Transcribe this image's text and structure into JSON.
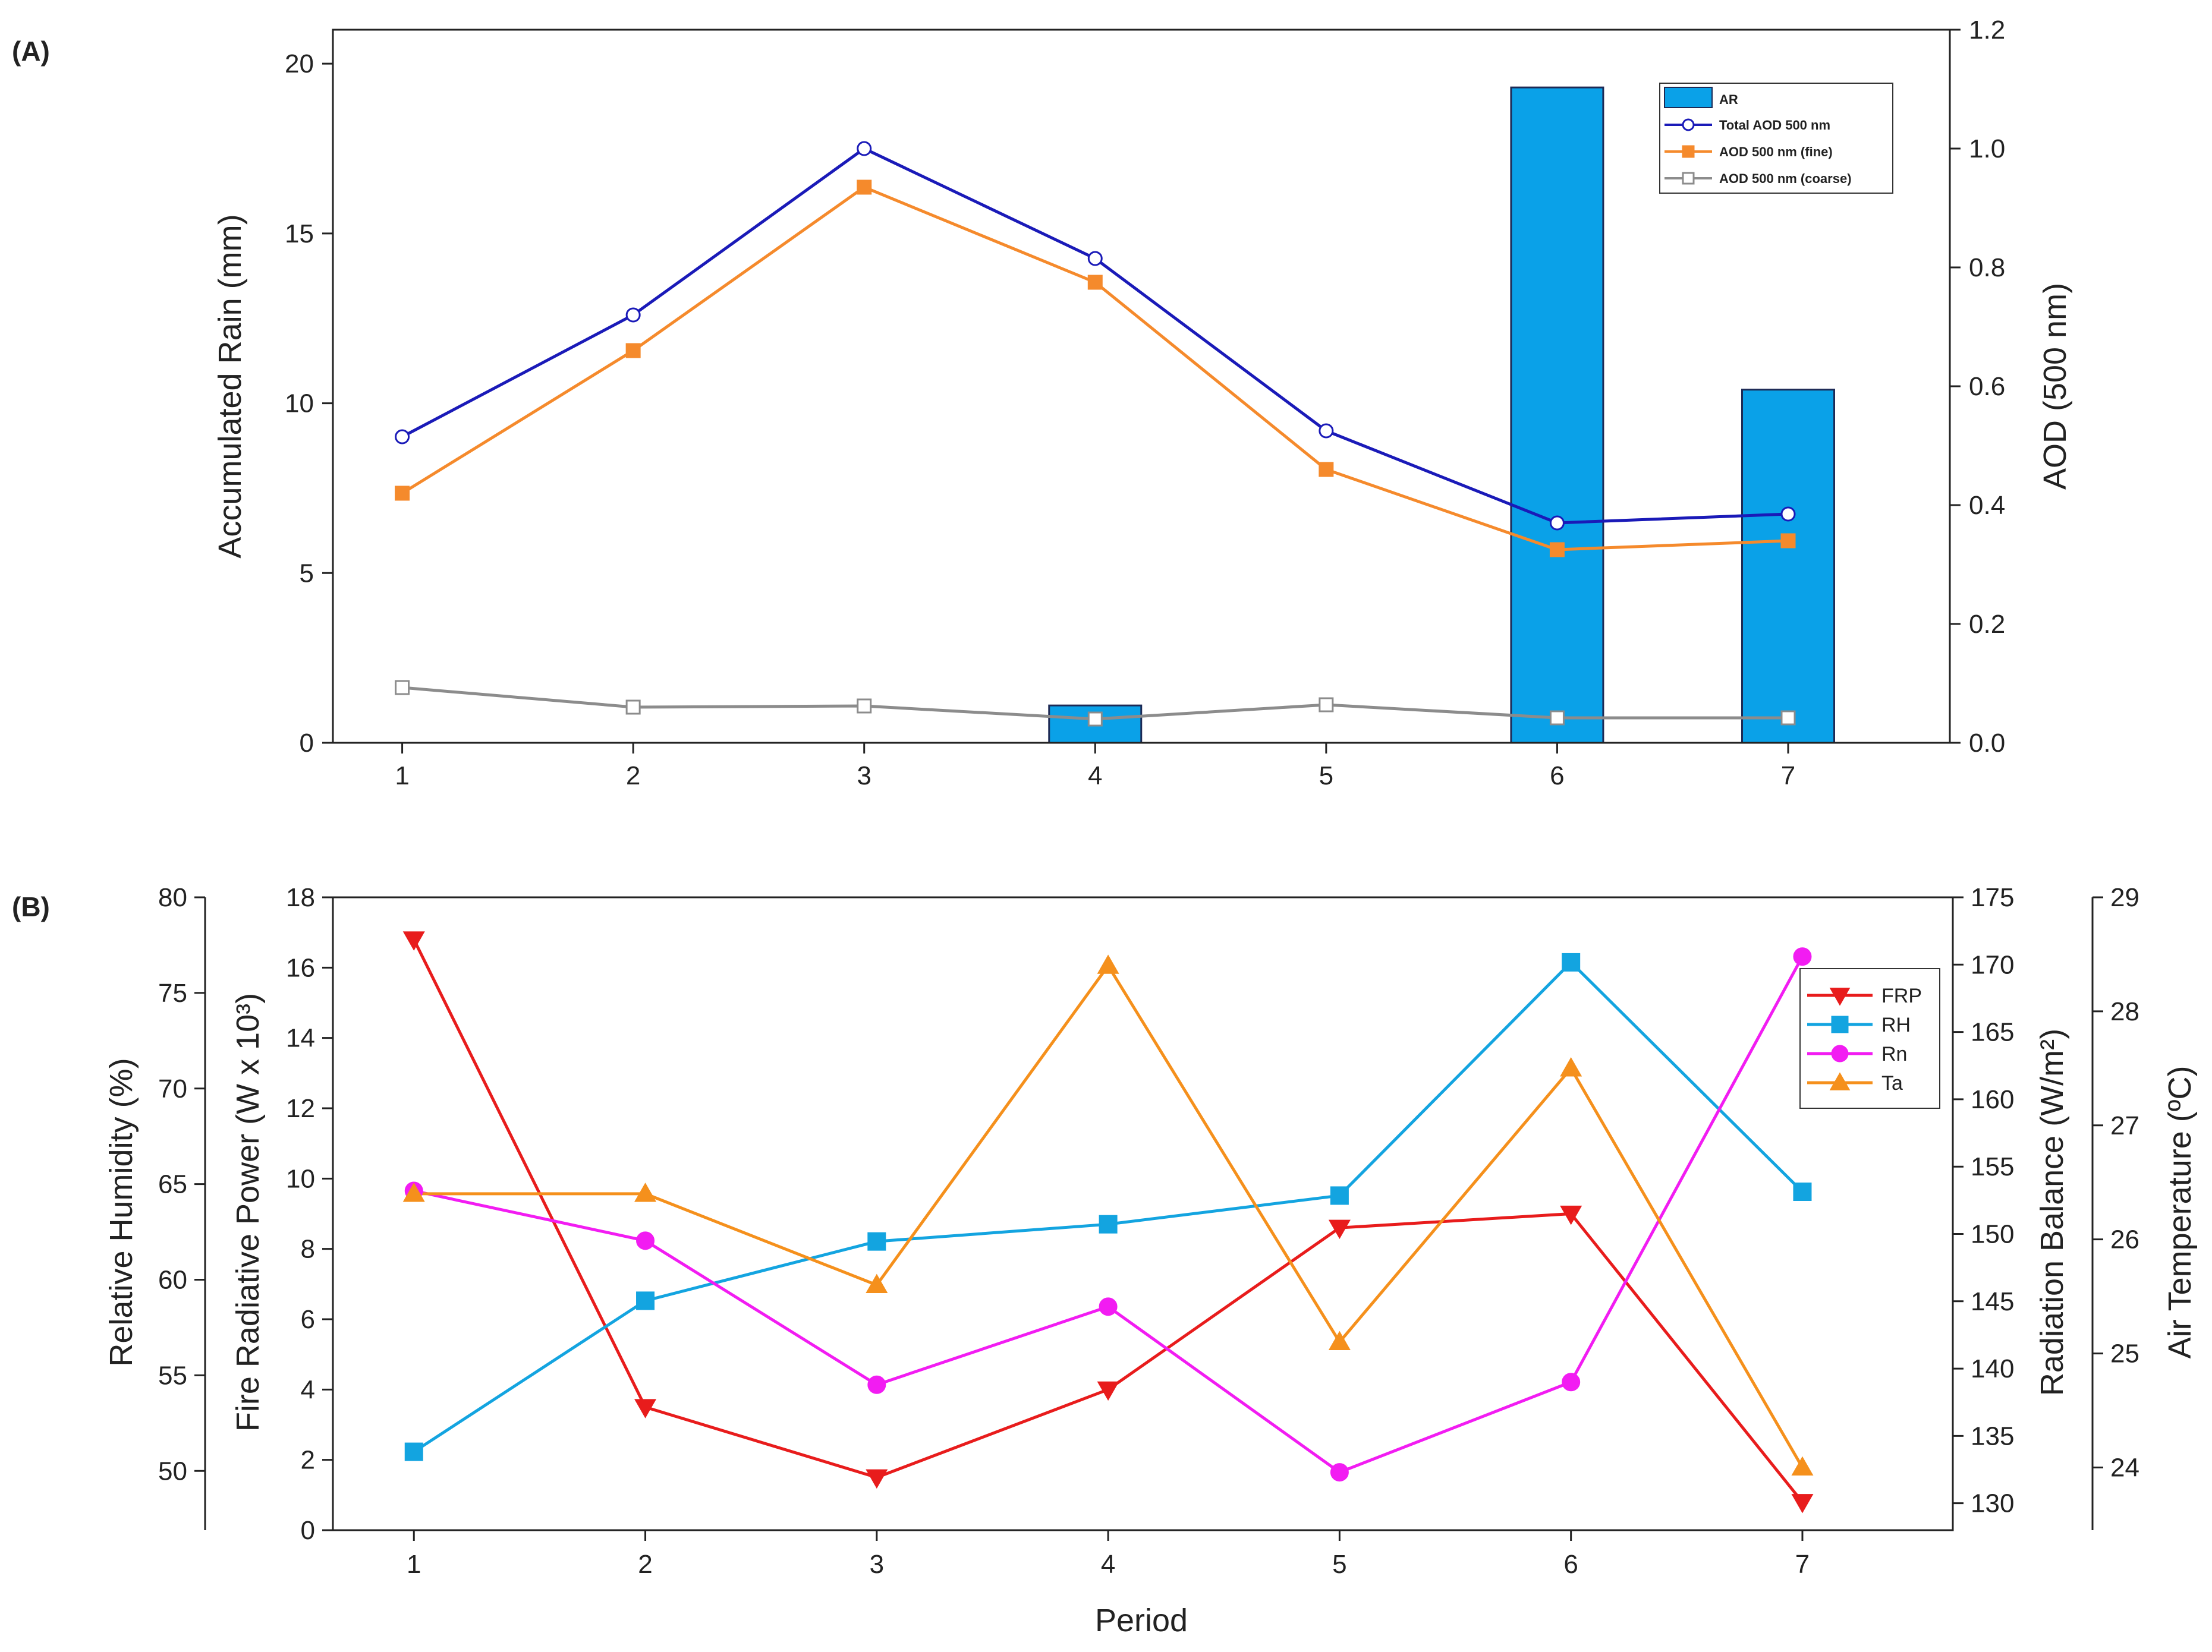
{
  "figure": {
    "panel_a_label": "(A)",
    "panel_b_label": "(B)"
  },
  "chart_data": [
    {
      "type": "bar+line",
      "panel": "(A)",
      "x": [
        1,
        2,
        3,
        4,
        5,
        6,
        7
      ],
      "xlim": [
        0.7,
        7.7
      ],
      "xticks": [
        "1",
        "2",
        "3",
        "4",
        "5",
        "6",
        "7"
      ],
      "left_axis": {
        "label": "Accumulated Rain (mm)",
        "lim": [
          0,
          21
        ],
        "ticks": [
          "0",
          "5",
          "10",
          "15",
          "20"
        ],
        "tick_values": [
          0,
          5,
          10,
          15,
          20
        ]
      },
      "right_axis": {
        "label": "AOD (500 nm)",
        "lim": [
          0,
          1.2
        ],
        "ticks": [
          "0.0",
          "0.2",
          "0.4",
          "0.6",
          "0.8",
          "1.0",
          "1.2"
        ],
        "tick_values": [
          0,
          0.2,
          0.4,
          0.6,
          0.8,
          1.0,
          1.2
        ]
      },
      "bars": {
        "name": "AR",
        "axis": "left",
        "color": "#0aa1e8",
        "values": [
          0,
          0,
          0,
          1.1,
          0,
          19.3,
          10.4
        ]
      },
      "series": [
        {
          "name": "Total AOD 500 nm",
          "axis": "right",
          "color": "#1a1ab8",
          "marker": "circle-open",
          "values": [
            0.515,
            0.72,
            1.0,
            0.815,
            0.525,
            0.37,
            0.385
          ]
        },
        {
          "name": "AOD 500 nm (fine)",
          "axis": "right",
          "color": "#f58a2c",
          "marker": "square",
          "values": [
            0.42,
            0.66,
            0.935,
            0.775,
            0.46,
            0.325,
            0.34
          ]
        },
        {
          "name": "AOD 500 nm (coarse)",
          "axis": "right",
          "color": "#8c8c8c",
          "marker": "square-open",
          "values": [
            0.093,
            0.06,
            0.062,
            0.04,
            0.064,
            0.042,
            0.042
          ]
        }
      ],
      "legend": {
        "placement": "top-right",
        "entries": [
          "AR",
          "Total AOD 500 nm",
          "AOD 500 nm (fine)",
          "AOD 500 nm (coarse)"
        ]
      }
    },
    {
      "type": "line",
      "panel": "(B)",
      "x": [
        1,
        2,
        3,
        4,
        5,
        6,
        7
      ],
      "xlim": [
        0.65,
        7.65
      ],
      "xticks": [
        "1",
        "2",
        "3",
        "4",
        "5",
        "6",
        "7"
      ],
      "xlabel": "Period",
      "axes": {
        "rh": {
          "label": "Relative Humidity (%)",
          "lim": [
            46.9,
            80
          ],
          "ticks": [
            "50",
            "55",
            "60",
            "65",
            "70",
            "75",
            "80"
          ],
          "tick_values": [
            50,
            55,
            60,
            65,
            70,
            75,
            80
          ]
        },
        "frp": {
          "label": "Fire Radiative Power (W x 10³)",
          "lim": [
            0,
            18
          ],
          "ticks": [
            "0",
            "2",
            "4",
            "6",
            "8",
            "10",
            "12",
            "14",
            "16",
            "18"
          ],
          "tick_values": [
            0,
            2,
            4,
            6,
            8,
            10,
            12,
            14,
            16,
            18
          ]
        },
        "rn": {
          "label": "Radiation Balance (W/m²)",
          "lim": [
            128,
            175
          ],
          "ticks": [
            "130",
            "135",
            "140",
            "145",
            "150",
            "155",
            "160",
            "165",
            "170",
            "175"
          ],
          "tick_values": [
            130,
            135,
            140,
            145,
            150,
            155,
            160,
            165,
            170,
            175
          ]
        },
        "ta": {
          "label": "Air Temperature (ºC)",
          "lim": [
            23.45,
            29
          ],
          "ticks": [
            "24",
            "25",
            "26",
            "27",
            "28",
            "29"
          ],
          "tick_values": [
            24,
            25,
            26,
            27,
            28,
            29
          ]
        }
      },
      "series": [
        {
          "name": "FRP",
          "axis": "frp",
          "color": "#e81c1c",
          "marker": "triangle-down",
          "values": [
            16.8,
            3.5,
            1.5,
            4.0,
            8.6,
            9.0,
            0.8
          ]
        },
        {
          "name": "RH",
          "axis": "rh",
          "color": "#13a4e0",
          "marker": "square",
          "values": [
            51.0,
            58.9,
            62.0,
            62.9,
            64.4,
            76.6,
            64.6
          ]
        },
        {
          "name": "Rn",
          "axis": "rn",
          "color": "#f21cf2",
          "marker": "circle",
          "values": [
            153.2,
            149.5,
            138.8,
            144.6,
            132.3,
            139.0,
            170.6
          ]
        },
        {
          "name": "Ta",
          "axis": "ta",
          "color": "#f5901c",
          "marker": "triangle-up",
          "values": [
            26.4,
            26.4,
            25.6,
            28.4,
            25.1,
            27.5,
            24.0
          ]
        }
      ],
      "legend": {
        "placement": "top-right",
        "entries": [
          "FRP",
          "RH",
          "Rn",
          "Ta"
        ]
      }
    }
  ]
}
